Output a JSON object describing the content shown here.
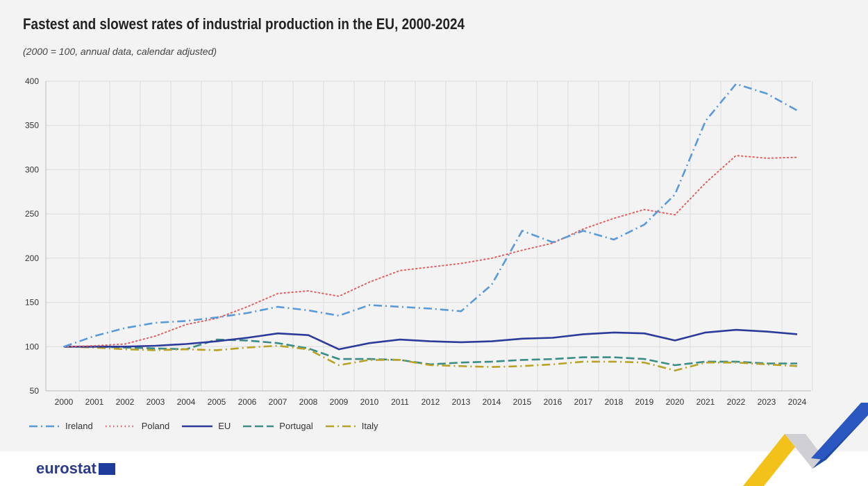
{
  "title": "Fastest and slowest rates of industrial production in the EU, 2000-2024",
  "subtitle": "(2000 = 100, annual data, calendar adjusted)",
  "brand": "eurostat",
  "chart_data": {
    "type": "line",
    "title": "Fastest and slowest rates of industrial production in the EU, 2000-2024",
    "subtitle": "(2000 = 100, annual data, calendar adjusted)",
    "x": [
      2000,
      2001,
      2002,
      2003,
      2004,
      2005,
      2006,
      2007,
      2008,
      2009,
      2010,
      2011,
      2012,
      2013,
      2014,
      2015,
      2016,
      2017,
      2018,
      2019,
      2020,
      2021,
      2022,
      2023,
      2024
    ],
    "ylim": [
      50,
      400
    ],
    "yticks": [
      50,
      100,
      150,
      200,
      250,
      300,
      350,
      400
    ],
    "grid": "vertical and horizontal",
    "legend": "bottom-left",
    "series": [
      {
        "name": "Ireland",
        "color": "#5a9ad8",
        "dash": "dashdot",
        "values": [
          100,
          112,
          121,
          127,
          129,
          133,
          138,
          145,
          141,
          135,
          147,
          145,
          143,
          140,
          170,
          231,
          218,
          231,
          221,
          238,
          272,
          355,
          397,
          386,
          367
        ]
      },
      {
        "name": "Poland",
        "color": "#e06060",
        "dash": "dotted",
        "values": [
          100,
          101,
          103,
          112,
          125,
          132,
          145,
          160,
          163,
          157,
          173,
          186,
          190,
          194,
          200,
          209,
          217,
          233,
          245,
          255,
          249,
          285,
          316,
          313,
          314
        ]
      },
      {
        "name": "EU",
        "color": "#2c3a9a",
        "dash": "solid",
        "values": [
          100,
          100,
          100,
          101,
          103,
          106,
          110,
          115,
          113,
          97,
          104,
          108,
          106,
          105,
          106,
          109,
          110,
          114,
          116,
          115,
          107,
          116,
          119,
          117,
          114
        ]
      },
      {
        "name": "Portugal",
        "color": "#3a8c86",
        "dash": "dashed",
        "values": [
          100,
          100,
          99,
          98,
          97,
          108,
          107,
          104,
          98,
          86,
          86,
          85,
          80,
          82,
          83,
          85,
          86,
          88,
          88,
          86,
          79,
          83,
          83,
          81,
          81
        ]
      },
      {
        "name": "Italy",
        "color": "#b8a226",
        "dash": "dashdot",
        "values": [
          100,
          99,
          97,
          96,
          97,
          96,
          99,
          101,
          97,
          79,
          85,
          85,
          79,
          78,
          77,
          78,
          80,
          83,
          83,
          82,
          73,
          82,
          82,
          80,
          78
        ]
      }
    ]
  }
}
